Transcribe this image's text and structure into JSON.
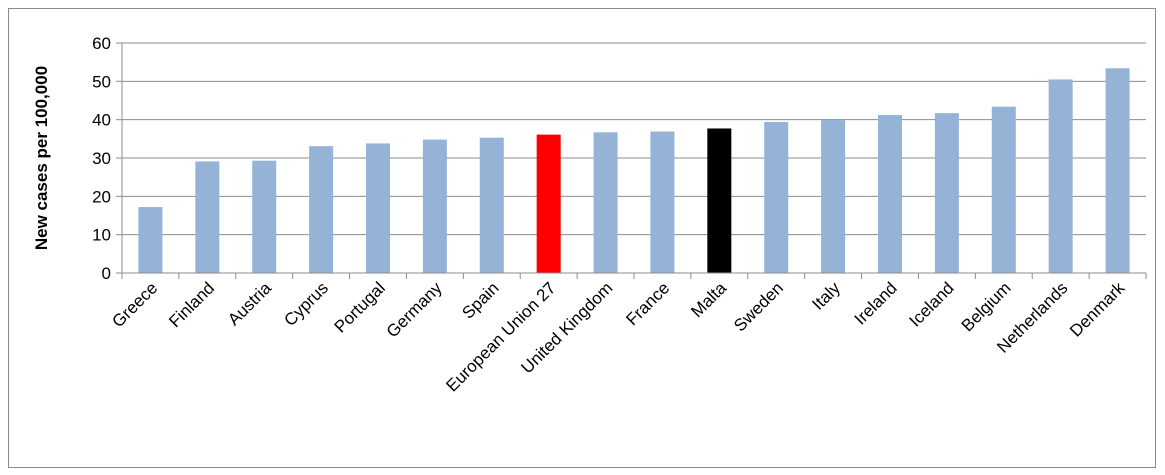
{
  "chart_data": {
    "type": "bar",
    "title": "",
    "xlabel": "",
    "ylabel": "New cases per 100,000",
    "ylim": [
      0,
      60
    ],
    "yticks": [
      0,
      10,
      20,
      30,
      40,
      50,
      60
    ],
    "grid": true,
    "legend": "none",
    "categories": [
      "Greece",
      "Finland",
      "Austria",
      "Cyprus",
      "Portugal",
      "Germany",
      "Spain",
      "European Union 27",
      "United Kingdom",
      "France",
      "Malta",
      "Sweden",
      "Italy",
      "Ireland",
      "Iceland",
      "Belgium",
      "Netherlands",
      "Denmark"
    ],
    "values": [
      17.2,
      29.1,
      29.3,
      33.1,
      33.8,
      34.8,
      35.3,
      36.1,
      36.7,
      36.9,
      37.7,
      39.4,
      39.9,
      41.2,
      41.7,
      43.4,
      50.5,
      53.4
    ],
    "colors": {
      "default": "#95b3d7",
      "European Union 27": "#ff0000",
      "Malta": "#000000"
    }
  }
}
